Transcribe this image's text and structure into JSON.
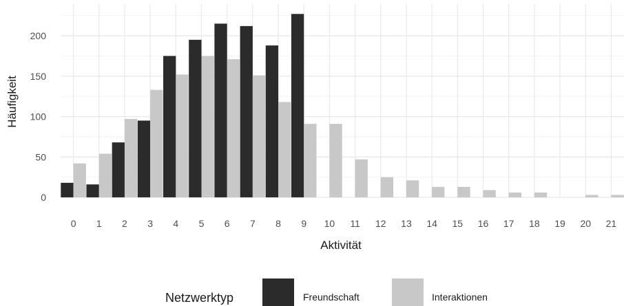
{
  "chart_data": {
    "type": "bar",
    "xlabel": "Aktivität",
    "ylabel": "Häufigkeit",
    "categories": [
      "0",
      "1",
      "2",
      "3",
      "4",
      "5",
      "6",
      "7",
      "8",
      "9",
      "10",
      "11",
      "12",
      "13",
      "14",
      "15",
      "16",
      "17",
      "18",
      "19",
      "20",
      "21"
    ],
    "ylim": [
      0,
      235
    ],
    "yticks": [
      0,
      50,
      100,
      150,
      200
    ],
    "grid": true,
    "legend_position": "bottom",
    "legend_title": "Netzwerktyp",
    "series": [
      {
        "name": "Freundschaft",
        "color": "#2b2b2b",
        "values": [
          18,
          16,
          68,
          95,
          175,
          195,
          215,
          212,
          188,
          227,
          0,
          0,
          0,
          0,
          0,
          0,
          0,
          0,
          0,
          0,
          0,
          0
        ]
      },
      {
        "name": "Interaktionen",
        "color": "#c8c8c8",
        "values": [
          42,
          54,
          97,
          133,
          152,
          175,
          171,
          151,
          118,
          91,
          91,
          47,
          25,
          21,
          13,
          13,
          9,
          6,
          6,
          0,
          3,
          3
        ]
      }
    ]
  }
}
